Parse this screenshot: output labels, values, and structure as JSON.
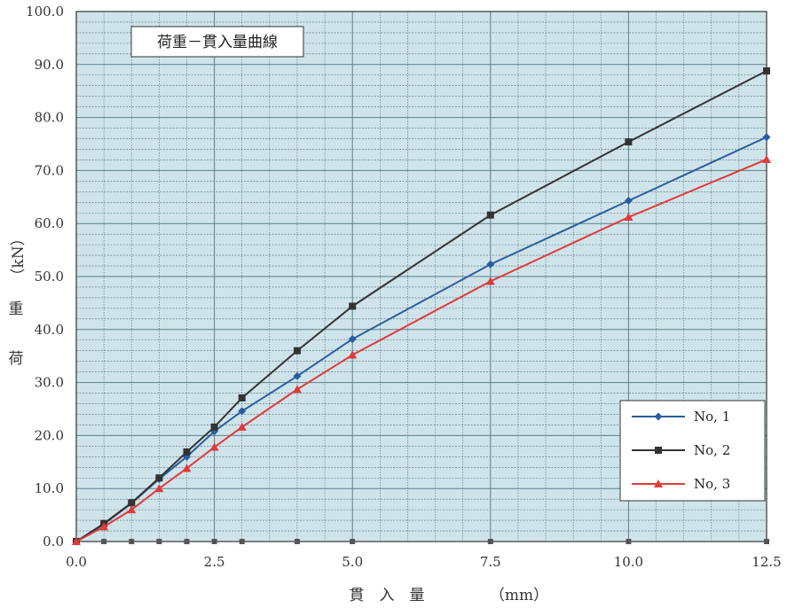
{
  "chart_data": {
    "type": "line",
    "title": "荷重－貫入量曲線",
    "xlabel": "貫　入　量",
    "xunit": "（mm）",
    "ylabel_chars": [
      "荷",
      "重"
    ],
    "yunit": "（kN）",
    "xlim": [
      0,
      12.5
    ],
    "ylim": [
      0,
      100
    ],
    "xticks": [
      "0.0",
      "2.5",
      "5.0",
      "7.5",
      "10.0",
      "12.5"
    ],
    "yticks": [
      "0.0",
      "10.0",
      "20.0",
      "30.0",
      "40.0",
      "50.0",
      "60.0",
      "70.0",
      "80.0",
      "90.0",
      "100.0"
    ],
    "grid": true,
    "legend_position": "bottom-right",
    "colors": {
      "plot_background": "#cfe4ea",
      "major_grid": "#5a7f8a",
      "minor_grid": "#4a6a74",
      "zero_markers": "#555555"
    },
    "series": [
      {
        "name": "No, 1",
        "color": "#2a5d9f",
        "marker": "diamond",
        "x": [
          0,
          0.5,
          1.0,
          1.5,
          2.0,
          2.5,
          3.0,
          4.0,
          5.0,
          7.5,
          10.0,
          12.5
        ],
        "y": [
          0,
          3.3,
          7.2,
          11.8,
          16.0,
          20.8,
          24.6,
          31.2,
          38.2,
          52.3,
          64.3,
          76.3
        ]
      },
      {
        "name": "No, 2",
        "color": "#333333",
        "marker": "square",
        "x": [
          0,
          0.5,
          1.0,
          1.5,
          2.0,
          2.5,
          3.0,
          4.0,
          5.0,
          7.5,
          10.0,
          12.5
        ],
        "y": [
          0,
          3.4,
          7.3,
          12.0,
          16.9,
          21.6,
          27.1,
          36.0,
          44.4,
          61.6,
          75.4,
          88.8
        ]
      },
      {
        "name": "No, 3",
        "color": "#e03a3a",
        "marker": "triangle",
        "x": [
          0,
          0.5,
          1.0,
          1.5,
          2.0,
          2.5,
          3.0,
          4.0,
          5.0,
          7.5,
          10.0,
          12.5
        ],
        "y": [
          0,
          2.8,
          6.0,
          10.0,
          13.8,
          17.8,
          21.6,
          28.7,
          35.2,
          49.1,
          61.2,
          72.1
        ]
      }
    ],
    "zero_line_x": [
      0,
      0.5,
      1.0,
      1.5,
      2.0,
      2.5,
      3.0,
      4.0,
      5.0,
      7.5,
      10.0,
      12.5
    ]
  }
}
